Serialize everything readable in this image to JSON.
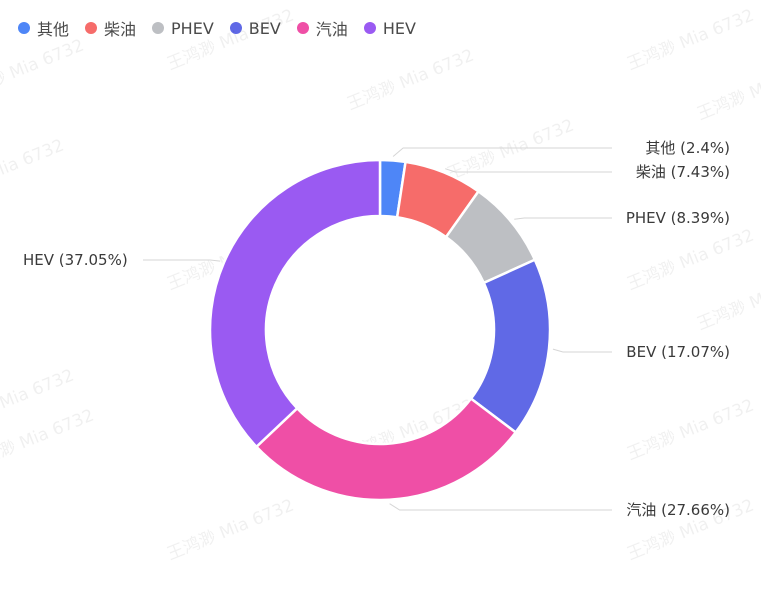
{
  "watermark": "王鸿渺 Mia 6732",
  "chart_data": {
    "type": "pie",
    "donut": true,
    "categories": [
      "其他",
      "柴油",
      "PHEV",
      "BEV",
      "汽油",
      "HEV"
    ],
    "values": [
      2.4,
      7.43,
      8.39,
      17.07,
      27.66,
      37.05
    ],
    "labels": [
      "其他 (2.4%)",
      "柴油 (7.43%)",
      "PHEV (8.39%)",
      "BEV (17.07%)",
      "汽油 (27.66%)",
      "HEV (37.05%)"
    ],
    "colors": [
      "#4e86f7",
      "#f66c6a",
      "#bdbfc3",
      "#6069e6",
      "#ef4fa6",
      "#9a5af2"
    ],
    "legend_position": "top-left"
  }
}
